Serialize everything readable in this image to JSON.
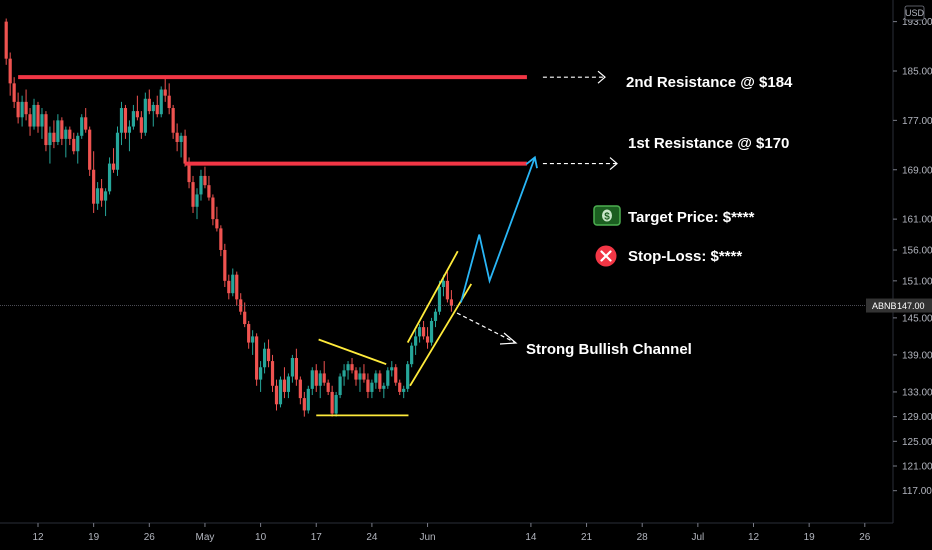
{
  "chart_data": {
    "type": "candlestick",
    "symbol": "ABNB",
    "currency": "USD",
    "last_price": 147.0,
    "last_price_label": "147.00",
    "y_ticks": [
      117,
      121,
      125,
      129,
      133,
      139,
      145,
      151,
      156,
      161,
      169,
      177,
      185,
      193
    ],
    "x_ticks": [
      {
        "label": "12",
        "day": 0
      },
      {
        "label": "19",
        "day": 7
      },
      {
        "label": "26",
        "day": 14
      },
      {
        "label": "May",
        "day": 21
      },
      {
        "label": "10",
        "day": 28
      },
      {
        "label": "17",
        "day": 35
      },
      {
        "label": "24",
        "day": 42
      },
      {
        "label": "Jun",
        "day": 49
      },
      {
        "label": "14",
        "day": 62
      },
      {
        "label": "21",
        "day": 69
      },
      {
        "label": "28",
        "day": 76
      },
      {
        "label": "Jul",
        "day": 83
      },
      {
        "label": "12",
        "day": 90
      },
      {
        "label": "19",
        "day": 97
      },
      {
        "label": "26",
        "day": 104
      }
    ],
    "grid": false,
    "colors": {
      "up": "#26a69a",
      "down": "#ef5350",
      "resistance": "#f23645",
      "pattern": "#ffeb3b",
      "projection": "#29b6f6"
    },
    "candles": [
      [
        -4,
        193,
        193.5,
        186,
        187
      ],
      [
        -3.5,
        187,
        188,
        181,
        183
      ],
      [
        -3,
        183,
        184,
        179,
        180
      ],
      [
        -2.5,
        180,
        181.5,
        176.5,
        177.5
      ],
      [
        -2,
        177.5,
        181,
        176,
        180
      ],
      [
        -1.5,
        180,
        182,
        177,
        178
      ],
      [
        -1,
        178,
        179,
        174.5,
        176
      ],
      [
        -0.5,
        176,
        180.5,
        175.5,
        179.5
      ],
      [
        0,
        179.5,
        180,
        175,
        176
      ],
      [
        0.5,
        176,
        179,
        174,
        178
      ],
      [
        1,
        178,
        178.5,
        172,
        173
      ],
      [
        1.5,
        173,
        176,
        170,
        175
      ],
      [
        2,
        175,
        177,
        172.5,
        173.5
      ],
      [
        2.5,
        173.5,
        178,
        173,
        177
      ],
      [
        3,
        177,
        177.5,
        173,
        174
      ],
      [
        3.5,
        174,
        176,
        171,
        175.5
      ],
      [
        4,
        175.5,
        176,
        173,
        174
      ],
      [
        4.5,
        174,
        175,
        171.5,
        172
      ],
      [
        5,
        172,
        175,
        170,
        174.5
      ],
      [
        5.5,
        174.5,
        178,
        174,
        177.5
      ],
      [
        6,
        177.5,
        179,
        175,
        175.5
      ],
      [
        6.5,
        175.5,
        176,
        168,
        169
      ],
      [
        7,
        169,
        172,
        162,
        163.5
      ],
      [
        7.5,
        163.5,
        167,
        162.5,
        166
      ],
      [
        8,
        166,
        167.5,
        163,
        164
      ],
      [
        8.5,
        164,
        166,
        161.5,
        165.5
      ],
      [
        9,
        165.5,
        171,
        165,
        170
      ],
      [
        9.5,
        170,
        172.5,
        168.5,
        169
      ],
      [
        10,
        169,
        176,
        168,
        175
      ],
      [
        10.5,
        175,
        180,
        173,
        179
      ],
      [
        11,
        179,
        179.5,
        174,
        175
      ],
      [
        11.5,
        175,
        177,
        172,
        176
      ],
      [
        12,
        176,
        179.5,
        175.5,
        178.5
      ],
      [
        12.5,
        178.5,
        181,
        177,
        177.5
      ],
      [
        13,
        177.5,
        178.5,
        174,
        175
      ],
      [
        13.5,
        175,
        181.5,
        174.5,
        180.5
      ],
      [
        14,
        180.5,
        182,
        178,
        178.5
      ],
      [
        14.5,
        178.5,
        180,
        176,
        179.5
      ],
      [
        15,
        179.5,
        181,
        177.5,
        178
      ],
      [
        15.5,
        178,
        182.5,
        177.5,
        182
      ],
      [
        16,
        182,
        184,
        180,
        181
      ],
      [
        16.5,
        181,
        183,
        178,
        179
      ],
      [
        17,
        179,
        179.5,
        174,
        175
      ],
      [
        17.5,
        175,
        176.5,
        172,
        173.5
      ],
      [
        18,
        173.5,
        175,
        171,
        174.5
      ],
      [
        18.5,
        174.5,
        175.5,
        169.5,
        170
      ],
      [
        19,
        170,
        171,
        166,
        167
      ],
      [
        19.5,
        167,
        168,
        162,
        163
      ],
      [
        20,
        163,
        166,
        161,
        165
      ],
      [
        20.5,
        165,
        169,
        164,
        168
      ],
      [
        21,
        168,
        169.5,
        166,
        166.5
      ],
      [
        21.5,
        166.5,
        168,
        164,
        164.5
      ],
      [
        22,
        164.5,
        165,
        160,
        161
      ],
      [
        22.5,
        161,
        163,
        159,
        159.5
      ],
      [
        23,
        159.5,
        160,
        155,
        156
      ],
      [
        23.5,
        156,
        157,
        150,
        151
      ],
      [
        24,
        151,
        152,
        148,
        149
      ],
      [
        24.5,
        149,
        153,
        148.5,
        152
      ],
      [
        25,
        152,
        152.5,
        147,
        148
      ],
      [
        25.5,
        148,
        149,
        145.5,
        146
      ],
      [
        26,
        146,
        147.5,
        143.5,
        144
      ],
      [
        26.5,
        144,
        144.5,
        140,
        141
      ],
      [
        27,
        141,
        143,
        139,
        142
      ],
      [
        27.5,
        142,
        142.5,
        134,
        135
      ],
      [
        28,
        135,
        138,
        133,
        137
      ],
      [
        28.5,
        137,
        141,
        136,
        140
      ],
      [
        29,
        140,
        141.5,
        137,
        138
      ],
      [
        29.5,
        138,
        139,
        133,
        134
      ],
      [
        30,
        134,
        135,
        130,
        131
      ],
      [
        30.5,
        131,
        135.5,
        130.5,
        135
      ],
      [
        31,
        135,
        137,
        132,
        133
      ],
      [
        31.5,
        133,
        136,
        132,
        135.5
      ],
      [
        32,
        135.5,
        139,
        134.5,
        138.5
      ],
      [
        32.5,
        138.5,
        140,
        134,
        135
      ],
      [
        33,
        135,
        135.5,
        131,
        132
      ],
      [
        33.5,
        132,
        133,
        129,
        130
      ],
      [
        34,
        130,
        134,
        129.5,
        133.5
      ],
      [
        34.5,
        133.5,
        137,
        132.5,
        136.5
      ],
      [
        35,
        136.5,
        137.5,
        133,
        134
      ],
      [
        35.5,
        134,
        136.5,
        132,
        136
      ],
      [
        36,
        136,
        138,
        134,
        134.5
      ],
      [
        36.5,
        134.5,
        135,
        132.5,
        133
      ],
      [
        37,
        133,
        134,
        129,
        129.5
      ],
      [
        37.5,
        129.5,
        133,
        129,
        132.5
      ],
      [
        38,
        132.5,
        136,
        132,
        135.5
      ],
      [
        38.5,
        135.5,
        137.5,
        134,
        136.5
      ],
      [
        39,
        136.5,
        138,
        135,
        137.5
      ],
      [
        39.5,
        137.5,
        138.5,
        136,
        136.5
      ],
      [
        40,
        136.5,
        137,
        134,
        135
      ],
      [
        40.5,
        135,
        137,
        133,
        136
      ],
      [
        41,
        136,
        137.5,
        134.5,
        135
      ],
      [
        41.5,
        135,
        136,
        132,
        133
      ],
      [
        42,
        133,
        135,
        132,
        134.5
      ],
      [
        42.5,
        134.5,
        136.5,
        133.5,
        136
      ],
      [
        43,
        136,
        136.5,
        133,
        133.5
      ],
      [
        43.5,
        133.5,
        134.5,
        132,
        134
      ],
      [
        44,
        134,
        137,
        133.5,
        136.5
      ],
      [
        44.5,
        136.5,
        138,
        135.5,
        137
      ],
      [
        45,
        137,
        137.5,
        134,
        134.5
      ],
      [
        45.5,
        134.5,
        135,
        132.5,
        133
      ],
      [
        46,
        133,
        134,
        132,
        133.5
      ],
      [
        46.5,
        133.5,
        138,
        133,
        137.5
      ],
      [
        47,
        137.5,
        141,
        137,
        140.5
      ],
      [
        47.5,
        140.5,
        143,
        139,
        142
      ],
      [
        48,
        142,
        144,
        141,
        143.5
      ],
      [
        48.5,
        143.5,
        144.5,
        141.5,
        142
      ],
      [
        49,
        142,
        143.5,
        140,
        141
      ],
      [
        49.5,
        141,
        145,
        140.5,
        144.5
      ],
      [
        50,
        144.5,
        146.5,
        143.5,
        146
      ],
      [
        50.5,
        146,
        151,
        145.5,
        150
      ],
      [
        51,
        150,
        152,
        148.5,
        151
      ],
      [
        51.5,
        151,
        152.5,
        147.5,
        148
      ],
      [
        52,
        148,
        149.5,
        146,
        147
      ]
    ],
    "annotations": [
      {
        "id": "res2",
        "type": "hline",
        "price": 184.0,
        "from_day": -2.5,
        "to_day": 61.5,
        "label": "2nd Resistance @ $184"
      },
      {
        "id": "res1",
        "type": "hline",
        "price": 170.0,
        "from_day": 18.5,
        "to_day": 61.5,
        "label": "1st Resistance @ $170"
      },
      {
        "id": "target",
        "label": "Target Price: $****",
        "icon": "dollar-bill-icon"
      },
      {
        "id": "stoploss",
        "label": "Stop-Loss: $****",
        "icon": "close-circle-icon"
      },
      {
        "id": "channel",
        "label": "Strong Bullish Channel"
      }
    ],
    "triangle_upper": [
      [
        35.3,
        141.5
      ],
      [
        43.8,
        137.5
      ]
    ],
    "triangle_lower": [
      [
        35.0,
        129.2
      ],
      [
        46.6,
        129.2
      ]
    ],
    "channel_upper": [
      [
        46.5,
        141.0
      ],
      [
        52.8,
        155.8
      ]
    ],
    "channel_lower": [
      [
        46.8,
        134.0
      ],
      [
        54.5,
        150.5
      ]
    ],
    "projection": [
      [
        53.2,
        147.5
      ],
      [
        55.5,
        158.5
      ],
      [
        56.8,
        151.0
      ],
      [
        62.5,
        171.0
      ]
    ]
  }
}
